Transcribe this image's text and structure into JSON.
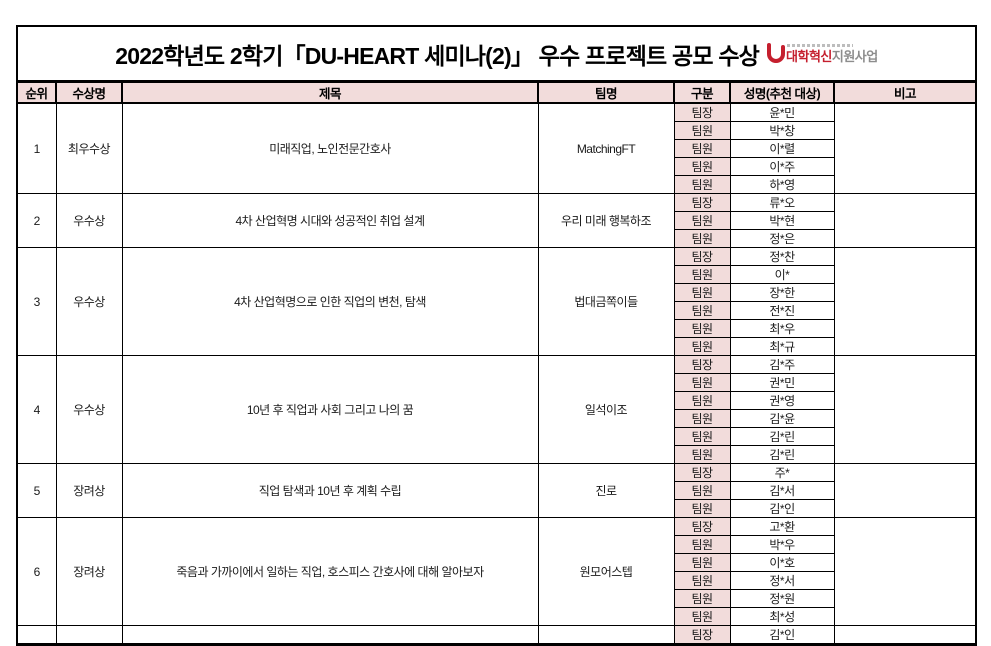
{
  "page": {
    "title": "2022학년도 2학기「DU-HEART 세미나(2)」 우수 프로젝트 공모 수상",
    "logo": {
      "red_text": "대학혁신",
      "gray_text": "지원사업"
    }
  },
  "colors": {
    "header_bg": "#f2dcdb",
    "border": "#000000",
    "logo_red": "#c51f2e",
    "logo_gray": "#8d8d8d"
  },
  "table": {
    "headers": [
      "순위",
      "수상명",
      "제목",
      "팀명",
      "구분",
      "성명(추천 대상)",
      "비고"
    ],
    "rows": [
      {
        "rank": "1",
        "award": "최우수상",
        "title": "미래직업, 노인전문간호사",
        "team": "MatchingFT",
        "note": "",
        "members": [
          {
            "role": "팀장",
            "name": "윤*민"
          },
          {
            "role": "팀원",
            "name": "박*창"
          },
          {
            "role": "팀원",
            "name": "이*렬"
          },
          {
            "role": "팀원",
            "name": "이*주"
          },
          {
            "role": "팀원",
            "name": "하*영"
          }
        ]
      },
      {
        "rank": "2",
        "award": "우수상",
        "title": "4차 산업혁명 시대와 성공적인 취업 설계",
        "team": "우리 미래 행복하조",
        "note": "",
        "members": [
          {
            "role": "팀장",
            "name": "류*오"
          },
          {
            "role": "팀원",
            "name": "박*현"
          },
          {
            "role": "팀원",
            "name": "정*은"
          }
        ]
      },
      {
        "rank": "3",
        "award": "우수상",
        "title": "4차 산업혁명으로 인한 직업의 변천, 탐색",
        "team": "법대금쪽이들",
        "note": "",
        "members": [
          {
            "role": "팀장",
            "name": "정*찬"
          },
          {
            "role": "팀원",
            "name": "이*"
          },
          {
            "role": "팀원",
            "name": "장*한"
          },
          {
            "role": "팀원",
            "name": "전*진"
          },
          {
            "role": "팀원",
            "name": "최*우"
          },
          {
            "role": "팀원",
            "name": "최*규"
          }
        ]
      },
      {
        "rank": "4",
        "award": "우수상",
        "title": "10년 후 직업과 사회 그리고 나의 꿈",
        "team": "일석이조",
        "note": "",
        "members": [
          {
            "role": "팀장",
            "name": "김*주"
          },
          {
            "role": "팀원",
            "name": "권*민"
          },
          {
            "role": "팀원",
            "name": "권*영"
          },
          {
            "role": "팀원",
            "name": "김*윤"
          },
          {
            "role": "팀원",
            "name": "김*린"
          },
          {
            "role": "팀원",
            "name": "김*린"
          }
        ]
      },
      {
        "rank": "5",
        "award": "장려상",
        "title": "직업 탐색과 10년 후 계획 수립",
        "team": "진로",
        "note": "",
        "members": [
          {
            "role": "팀장",
            "name": "주*"
          },
          {
            "role": "팀원",
            "name": "김*서"
          },
          {
            "role": "팀원",
            "name": "김*인"
          }
        ]
      },
      {
        "rank": "6",
        "award": "장려상",
        "title": "죽음과 가까이에서 일하는 직업, 호스피스 간호사에 대해 알아보자",
        "team": "원모어스텝",
        "note": "",
        "members": [
          {
            "role": "팀장",
            "name": "고*환"
          },
          {
            "role": "팀원",
            "name": "박*우"
          },
          {
            "role": "팀원",
            "name": "이*호"
          },
          {
            "role": "팀원",
            "name": "정*서"
          },
          {
            "role": "팀원",
            "name": "정*원"
          },
          {
            "role": "팀원",
            "name": "최*성"
          }
        ]
      },
      {
        "rank": "",
        "award": "",
        "title": "",
        "team": "",
        "note": "",
        "members": [
          {
            "role": "팀장",
            "name": "김*인"
          }
        ]
      }
    ]
  }
}
